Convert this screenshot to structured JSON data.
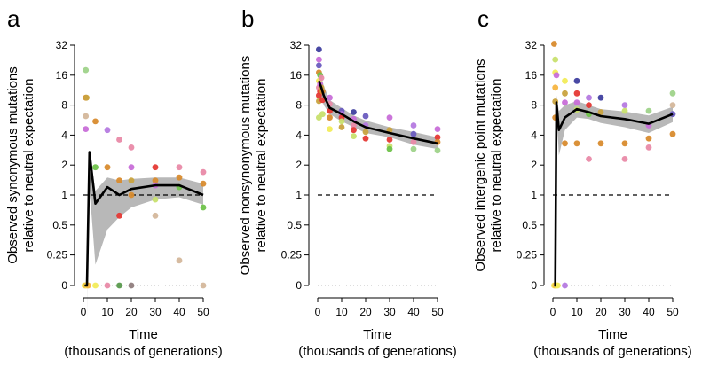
{
  "figure": {
    "panel_letters": [
      "a",
      "b",
      "c"
    ],
    "colors": {
      "mean_line": "#000000",
      "ci_band": "#b8b8b8",
      "neutral_line": "#000000",
      "zero_line": "#bbbbbb",
      "points": [
        "#e53935",
        "#e98aa8",
        "#c86ed8",
        "#b57ae0",
        "#6a5cbf",
        "#3f3f9f",
        "#9fd38a",
        "#6fc24a",
        "#5a9a4e",
        "#c8e06e",
        "#f2ec5a",
        "#f7b541",
        "#d88b2e",
        "#c9a33f",
        "#d4b79b",
        "#8f7d7d"
      ]
    }
  },
  "chart_data": [
    {
      "type": "scatter",
      "panel": "a",
      "ylabel_line1": "Observed synonymous mutations",
      "ylabel_line2": "relative to neutral expectation",
      "xlabel_line1": "Time",
      "xlabel_line2": "(thousands of generations)",
      "x_ticks": [
        0,
        10,
        20,
        30,
        40,
        50
      ],
      "x_tick_labels": [
        "0",
        "10",
        "20",
        "30",
        "40",
        "50"
      ],
      "xlim": [
        0,
        50
      ],
      "y_scale": "log2 with zero row",
      "y_ticks": [
        0,
        0.25,
        0.5,
        1,
        2,
        4,
        8,
        16,
        32
      ],
      "y_tick_labels": [
        "0",
        "0.25",
        "0.5",
        "1",
        "2",
        "4",
        "8",
        "16",
        "32"
      ],
      "neutral_expectation": 1,
      "mean_line": {
        "x": [
          0.5,
          1.5,
          2.5,
          5,
          10,
          15,
          20,
          30,
          40,
          50
        ],
        "y": [
          0,
          0,
          2.7,
          0.82,
          1.2,
          1.0,
          1.15,
          1.25,
          1.25,
          1.0
        ]
      },
      "ci_band": {
        "x": [
          1.5,
          2.5,
          5,
          10,
          15,
          20,
          30,
          40,
          50
        ],
        "lo": [
          0.05,
          1.2,
          0.2,
          0.45,
          0.6,
          0.75,
          0.9,
          0.95,
          0.8
        ],
        "hi": [
          0.05,
          2.8,
          1.1,
          1.5,
          1.4,
          1.45,
          1.5,
          1.5,
          1.3
        ]
      },
      "points": [
        {
          "x": 1,
          "y": 18,
          "c": 6
        },
        {
          "x": 1,
          "y": 9.5,
          "c": 12
        },
        {
          "x": 1.3,
          "y": 9.5,
          "c": 13
        },
        {
          "x": 1,
          "y": 6.2,
          "c": 14
        },
        {
          "x": 1,
          "y": 4.6,
          "c": 2
        },
        {
          "x": 0.5,
          "y": 0,
          "c": 10
        },
        {
          "x": 1,
          "y": 0,
          "c": 11
        },
        {
          "x": 1.5,
          "y": 0,
          "c": 10
        },
        {
          "x": 2,
          "y": 0,
          "c": 11
        },
        {
          "x": 5,
          "y": 5.5,
          "c": 12
        },
        {
          "x": 5,
          "y": 1.9,
          "c": 7
        },
        {
          "x": 5,
          "y": 0,
          "c": 10
        },
        {
          "x": 10,
          "y": 4.5,
          "c": 3
        },
        {
          "x": 10,
          "y": 1.9,
          "c": 12
        },
        {
          "x": 10,
          "y": 0,
          "c": 1
        },
        {
          "x": 15,
          "y": 3.6,
          "c": 1
        },
        {
          "x": 15,
          "y": 1.4,
          "c": 12
        },
        {
          "x": 15,
          "y": 0.62,
          "c": 0
        },
        {
          "x": 15,
          "y": 0,
          "c": 8
        },
        {
          "x": 20,
          "y": 3.0,
          "c": 1
        },
        {
          "x": 20,
          "y": 1.9,
          "c": 2
        },
        {
          "x": 20,
          "y": 1.4,
          "c": 13
        },
        {
          "x": 20,
          "y": 1.0,
          "c": 12
        },
        {
          "x": 20,
          "y": 0,
          "c": 15
        },
        {
          "x": 30,
          "y": 1.9,
          "c": 0
        },
        {
          "x": 30,
          "y": 1.4,
          "c": 12
        },
        {
          "x": 30,
          "y": 1.25,
          "c": 2
        },
        {
          "x": 30,
          "y": 0.9,
          "c": 9
        },
        {
          "x": 30,
          "y": 0.62,
          "c": 14
        },
        {
          "x": 40,
          "y": 1.9,
          "c": 1
        },
        {
          "x": 40,
          "y": 1.5,
          "c": 12
        },
        {
          "x": 40,
          "y": 1.2,
          "c": 7
        },
        {
          "x": 40,
          "y": 0.22,
          "c": 14
        },
        {
          "x": 50,
          "y": 1.7,
          "c": 1
        },
        {
          "x": 50,
          "y": 1.3,
          "c": 12
        },
        {
          "x": 50,
          "y": 0.75,
          "c": 7
        },
        {
          "x": 50,
          "y": 0,
          "c": 14
        }
      ]
    },
    {
      "type": "scatter",
      "panel": "b",
      "ylabel_line1": "Observed nonsynonymous mutations",
      "ylabel_line2": "relative to neutral expectation",
      "xlabel_line1": "Time",
      "xlabel_line2": "(thousands of generations)",
      "x_ticks": [
        0,
        10,
        20,
        30,
        40,
        50
      ],
      "x_tick_labels": [
        "0",
        "10",
        "20",
        "30",
        "40",
        "50"
      ],
      "xlim": [
        0,
        50
      ],
      "y_scale": "log2 with zero row",
      "y_ticks": [
        0,
        0.25,
        0.5,
        1,
        2,
        4,
        8,
        16,
        32
      ],
      "y_tick_labels": [
        "0",
        "0.25",
        "0.5",
        "1",
        "2",
        "4",
        "8",
        "16",
        "32"
      ],
      "neutral_expectation": 1,
      "mean_line": {
        "x": [
          0.5,
          1,
          1.5,
          2,
          2.5,
          5,
          10,
          15,
          20,
          30,
          40,
          50
        ],
        "y": [
          14,
          13,
          12,
          11,
          10,
          7.5,
          6.5,
          5.5,
          4.8,
          4.2,
          3.7,
          3.3
        ]
      },
      "ci_band": {
        "x": [
          0.5,
          1,
          1.5,
          2,
          2.5,
          5,
          10,
          15,
          20,
          30,
          40,
          50
        ],
        "lo": [
          10,
          10,
          9.5,
          8.8,
          8,
          6.5,
          5.5,
          4.8,
          4.2,
          3.8,
          3.2,
          2.9
        ],
        "hi": [
          19,
          17,
          16,
          14,
          12.5,
          9,
          7.5,
          6.3,
          5.6,
          4.8,
          4.3,
          3.8
        ]
      },
      "points": [
        {
          "x": 0.5,
          "y": 29,
          "c": 5
        },
        {
          "x": 0.5,
          "y": 23,
          "c": 2
        },
        {
          "x": 0.5,
          "y": 20,
          "c": 4
        },
        {
          "x": 0.5,
          "y": 17,
          "c": 12
        },
        {
          "x": 0.5,
          "y": 14,
          "c": 10
        },
        {
          "x": 0.5,
          "y": 12,
          "c": 1
        },
        {
          "x": 0.5,
          "y": 10,
          "c": 0
        },
        {
          "x": 0.5,
          "y": 8.8,
          "c": 13
        },
        {
          "x": 0.5,
          "y": 6,
          "c": 9
        },
        {
          "x": 1,
          "y": 16,
          "c": 7
        },
        {
          "x": 1,
          "y": 13,
          "c": 2
        },
        {
          "x": 1,
          "y": 11,
          "c": 0
        },
        {
          "x": 1.5,
          "y": 15,
          "c": 1
        },
        {
          "x": 1.5,
          "y": 12,
          "c": 13
        },
        {
          "x": 2,
          "y": 11,
          "c": 12
        },
        {
          "x": 2,
          "y": 9,
          "c": 0
        },
        {
          "x": 2,
          "y": 6.5,
          "c": 9
        },
        {
          "x": 5,
          "y": 9.5,
          "c": 2
        },
        {
          "x": 5,
          "y": 8.2,
          "c": 1
        },
        {
          "x": 5,
          "y": 7,
          "c": 0
        },
        {
          "x": 5,
          "y": 6,
          "c": 12
        },
        {
          "x": 5,
          "y": 4.6,
          "c": 10
        },
        {
          "x": 10,
          "y": 7,
          "c": 4
        },
        {
          "x": 10,
          "y": 6.5,
          "c": 3
        },
        {
          "x": 10,
          "y": 6,
          "c": 0
        },
        {
          "x": 10,
          "y": 5.5,
          "c": 9
        },
        {
          "x": 10,
          "y": 4.8,
          "c": 13
        },
        {
          "x": 15,
          "y": 6.8,
          "c": 5
        },
        {
          "x": 15,
          "y": 5.8,
          "c": 2
        },
        {
          "x": 15,
          "y": 5,
          "c": 1
        },
        {
          "x": 15,
          "y": 4.5,
          "c": 0
        },
        {
          "x": 15,
          "y": 3.9,
          "c": 9
        },
        {
          "x": 20,
          "y": 6.2,
          "c": 4
        },
        {
          "x": 20,
          "y": 5,
          "c": 3
        },
        {
          "x": 20,
          "y": 4.3,
          "c": 13
        },
        {
          "x": 20,
          "y": 3.7,
          "c": 0
        },
        {
          "x": 30,
          "y": 6,
          "c": 2
        },
        {
          "x": 30,
          "y": 4.5,
          "c": 13
        },
        {
          "x": 30,
          "y": 3.6,
          "c": 0
        },
        {
          "x": 30,
          "y": 3.1,
          "c": 9
        },
        {
          "x": 30,
          "y": 2.9,
          "c": 7
        },
        {
          "x": 40,
          "y": 5,
          "c": 3
        },
        {
          "x": 40,
          "y": 4.1,
          "c": 4
        },
        {
          "x": 40,
          "y": 3.4,
          "c": 1
        },
        {
          "x": 40,
          "y": 2.9,
          "c": 6
        },
        {
          "x": 50,
          "y": 4.6,
          "c": 2
        },
        {
          "x": 50,
          "y": 3.8,
          "c": 0
        },
        {
          "x": 50,
          "y": 3.4,
          "c": 12
        },
        {
          "x": 50,
          "y": 2.8,
          "c": 6
        }
      ]
    },
    {
      "type": "scatter",
      "panel": "c",
      "ylabel_line1": "Observed intergenic point mutations",
      "ylabel_line2": "relative to neutral expectation",
      "xlabel_line1": "Time",
      "xlabel_line2": "(thousands of generations)",
      "x_ticks": [
        0,
        10,
        20,
        30,
        40,
        50
      ],
      "x_tick_labels": [
        "0",
        "10",
        "20",
        "30",
        "40",
        "50"
      ],
      "xlim": [
        0,
        50
      ],
      "y_scale": "log2 with zero row",
      "y_ticks": [
        0,
        0.25,
        0.5,
        1,
        2,
        4,
        8,
        16,
        32
      ],
      "y_tick_labels": [
        "0",
        "0.25",
        "0.5",
        "1",
        "2",
        "4",
        "8",
        "16",
        "32"
      ],
      "neutral_expectation": 1,
      "mean_line": {
        "x": [
          0.5,
          1,
          1.5,
          2.5,
          5,
          10,
          15,
          20,
          30,
          40,
          50
        ],
        "y": [
          0,
          0,
          8.5,
          4.5,
          6,
          7.3,
          6.8,
          6.2,
          5.8,
          5.2,
          6.5
        ]
      },
      "ci_band": {
        "x": [
          1.5,
          2.5,
          5,
          10,
          15,
          20,
          30,
          40,
          50
        ],
        "lo": [
          7,
          2.5,
          4.5,
          6,
          5.8,
          5.3,
          4.8,
          4.2,
          5.4
        ],
        "hi": [
          10,
          7,
          8,
          8.8,
          8,
          7.3,
          6.9,
          6.3,
          7.7
        ]
      },
      "points": [
        {
          "x": 0.5,
          "y": 33,
          "c": 12
        },
        {
          "x": 1,
          "y": 23,
          "c": 9
        },
        {
          "x": 1,
          "y": 17,
          "c": 10
        },
        {
          "x": 1,
          "y": 12,
          "c": 11
        },
        {
          "x": 1.5,
          "y": 16,
          "c": 2
        },
        {
          "x": 1,
          "y": 8.7,
          "c": 13
        },
        {
          "x": 1,
          "y": 6,
          "c": 12
        },
        {
          "x": 0.5,
          "y": 0,
          "c": 10
        },
        {
          "x": 1,
          "y": 0,
          "c": 11
        },
        {
          "x": 1.5,
          "y": 0,
          "c": 10
        },
        {
          "x": 2,
          "y": 0,
          "c": 10
        },
        {
          "x": 5,
          "y": 0,
          "c": 3
        },
        {
          "x": 5,
          "y": 14,
          "c": 10
        },
        {
          "x": 5,
          "y": 10.5,
          "c": 13
        },
        {
          "x": 5,
          "y": 8.5,
          "c": 2
        },
        {
          "x": 5,
          "y": 3.3,
          "c": 12
        },
        {
          "x": 10,
          "y": 14,
          "c": 5
        },
        {
          "x": 10,
          "y": 10.5,
          "c": 0
        },
        {
          "x": 10,
          "y": 8.5,
          "c": 2
        },
        {
          "x": 10,
          "y": 7.2,
          "c": 9
        },
        {
          "x": 10,
          "y": 3.3,
          "c": 12
        },
        {
          "x": 15,
          "y": 9.5,
          "c": 3
        },
        {
          "x": 15,
          "y": 8,
          "c": 0
        },
        {
          "x": 15,
          "y": 6.5,
          "c": 7
        },
        {
          "x": 15,
          "y": 2.3,
          "c": 1
        },
        {
          "x": 20,
          "y": 9.5,
          "c": 5
        },
        {
          "x": 20,
          "y": 6.8,
          "c": 13
        },
        {
          "x": 20,
          "y": 3.3,
          "c": 12
        },
        {
          "x": 30,
          "y": 8,
          "c": 3
        },
        {
          "x": 30,
          "y": 7,
          "c": 9
        },
        {
          "x": 30,
          "y": 3.3,
          "c": 12
        },
        {
          "x": 30,
          "y": 2.3,
          "c": 1
        },
        {
          "x": 40,
          "y": 7,
          "c": 6
        },
        {
          "x": 40,
          "y": 5,
          "c": 2
        },
        {
          "x": 40,
          "y": 3.7,
          "c": 12
        },
        {
          "x": 40,
          "y": 3,
          "c": 1
        },
        {
          "x": 50,
          "y": 10.5,
          "c": 6
        },
        {
          "x": 50,
          "y": 8,
          "c": 14
        },
        {
          "x": 50,
          "y": 6.5,
          "c": 4
        },
        {
          "x": 50,
          "y": 4.1,
          "c": 12
        }
      ]
    }
  ]
}
